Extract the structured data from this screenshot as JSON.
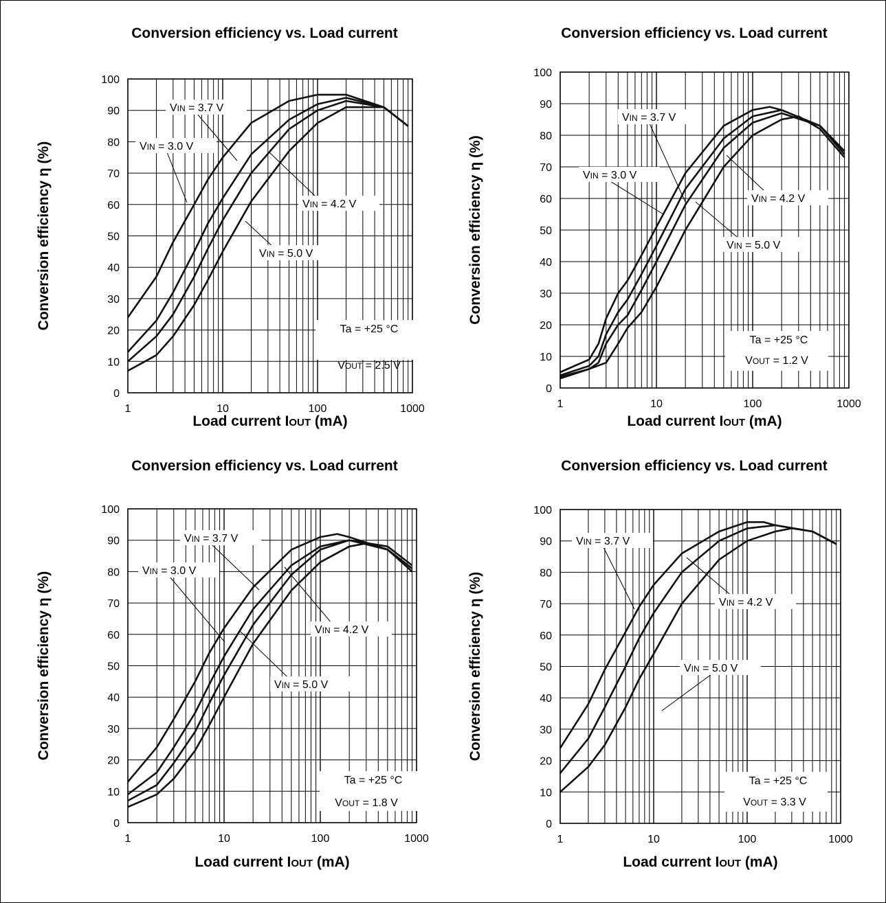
{
  "chart_data": [
    {
      "type": "line",
      "title": "Conversion efficiency vs. Load current",
      "xlabel": "Load current IOUT (mA)",
      "ylabel": "Conversion efficiency η (%)",
      "x_scale": "log",
      "xlim": [
        1,
        1000
      ],
      "ylim": [
        0,
        100
      ],
      "x_ticks": [
        "1",
        "10",
        "100",
        "1000"
      ],
      "y_ticks": [
        "0",
        "10",
        "20",
        "30",
        "40",
        "50",
        "60",
        "70",
        "80",
        "90",
        "100"
      ],
      "grid": true,
      "conditions": [
        "Ta = +25 °C",
        "VOUT = 2.5 V"
      ],
      "series": [
        {
          "name": "VIN = 3.0 V",
          "x": [
            1,
            2,
            3,
            5,
            7,
            10,
            20,
            50,
            100,
            200,
            500,
            900
          ],
          "y": [
            24,
            37,
            48,
            60,
            68,
            75,
            86,
            93,
            95,
            95,
            91,
            85
          ]
        },
        {
          "name": "VIN = 3.7 V",
          "x": [
            1,
            2,
            3,
            5,
            7,
            10,
            20,
            50,
            100,
            200,
            500,
            900
          ],
          "y": [
            13,
            23,
            32,
            45,
            54,
            62,
            76,
            87,
            92,
            94,
            91,
            85
          ]
        },
        {
          "name": "VIN = 4.2 V",
          "x": [
            1,
            2,
            3,
            5,
            7,
            10,
            20,
            50,
            100,
            200,
            500,
            900
          ],
          "y": [
            10,
            18,
            25,
            37,
            46,
            55,
            70,
            84,
            90,
            93,
            91,
            85
          ]
        },
        {
          "name": "VIN = 5.0 V",
          "x": [
            1,
            2,
            3,
            5,
            7,
            10,
            20,
            50,
            100,
            200,
            500,
            900
          ],
          "y": [
            7,
            12,
            18,
            28,
            36,
            45,
            61,
            77,
            86,
            91,
            91,
            85
          ]
        }
      ],
      "annotations": [
        "VIN = 3.7 V",
        "VIN = 3.0 V",
        "VIN = 4.2 V",
        "VIN = 5.0 V"
      ]
    },
    {
      "type": "line",
      "title": "Conversion efficiency vs. Load current",
      "xlabel": "Load current IOUT (mA)",
      "ylabel": "Conversion efficiency η (%)",
      "x_scale": "log",
      "xlim": [
        1,
        1000
      ],
      "ylim": [
        0,
        100
      ],
      "x_ticks": [
        "1",
        "10",
        "100",
        "1000"
      ],
      "y_ticks": [
        "0",
        "10",
        "20",
        "30",
        "40",
        "50",
        "60",
        "70",
        "80",
        "90",
        "100"
      ],
      "grid": true,
      "conditions": [
        "Ta = +25 °C",
        "VOUT = 1.2 V"
      ],
      "series": [
        {
          "name": "VIN = 3.0 V",
          "x": [
            1,
            2,
            2.5,
            3,
            4,
            5,
            7,
            10,
            20,
            50,
            100,
            150,
            200,
            500,
            900
          ],
          "y": [
            5,
            9,
            14,
            22,
            30,
            34,
            42,
            51,
            68,
            83,
            88,
            89,
            88,
            83,
            75
          ]
        },
        {
          "name": "VIN = 3.7 V",
          "x": [
            1,
            2,
            2.5,
            3,
            4,
            5,
            7,
            10,
            20,
            50,
            100,
            200,
            500,
            900
          ],
          "y": [
            4,
            7,
            10,
            17,
            24,
            28,
            36,
            45,
            63,
            79,
            86,
            88,
            83,
            75
          ]
        },
        {
          "name": "VIN = 4.2 V",
          "x": [
            1,
            2,
            2.5,
            3,
            4,
            5,
            7,
            10,
            20,
            50,
            100,
            200,
            500,
            900
          ],
          "y": [
            3.5,
            6,
            8,
            14,
            20,
            23,
            31,
            40,
            58,
            76,
            84,
            87,
            83,
            74
          ]
        },
        {
          "name": "VIN = 5.0 V",
          "x": [
            1,
            2,
            3,
            4,
            5,
            7,
            10,
            20,
            50,
            100,
            200,
            300,
            500,
            900
          ],
          "y": [
            3,
            6,
            8,
            14,
            19,
            24,
            32,
            50,
            70,
            80,
            85,
            86,
            82,
            73
          ]
        }
      ],
      "annotations": [
        "VIN = 3.7 V",
        "VIN = 3.0 V",
        "VIN = 4.2 V",
        "VIN = 5.0 V"
      ]
    },
    {
      "type": "line",
      "title": "Conversion efficiency vs. Load current",
      "xlabel": "Load current IOUT (mA)",
      "ylabel": "Conversion efficiency η (%)",
      "x_scale": "log",
      "xlim": [
        1,
        1000
      ],
      "ylim": [
        0,
        100
      ],
      "x_ticks": [
        "1",
        "10",
        "100",
        "1000"
      ],
      "y_ticks": [
        "0",
        "10",
        "20",
        "30",
        "40",
        "50",
        "60",
        "70",
        "80",
        "90",
        "100"
      ],
      "grid": true,
      "conditions": [
        "Ta = +25 °C",
        "VOUT = 1.8 V"
      ],
      "series": [
        {
          "name": "VIN = 3.0 V",
          "x": [
            1,
            2,
            3,
            5,
            7,
            10,
            20,
            50,
            100,
            150,
            200,
            500,
            900
          ],
          "y": [
            13,
            24,
            33,
            45,
            54,
            62,
            75,
            87,
            91,
            92,
            91,
            87,
            80
          ]
        },
        {
          "name": "VIN = 3.7 V",
          "x": [
            1,
            2,
            3,
            5,
            7,
            10,
            20,
            50,
            100,
            200,
            500,
            900
          ],
          "y": [
            9,
            16,
            24,
            35,
            44,
            53,
            68,
            82,
            88,
            90,
            87,
            81
          ]
        },
        {
          "name": "VIN = 4.2 V",
          "x": [
            1,
            2,
            3,
            5,
            7,
            10,
            20,
            50,
            100,
            200,
            500,
            900
          ],
          "y": [
            7,
            12,
            19,
            29,
            38,
            47,
            63,
            79,
            87,
            90,
            88,
            82
          ]
        },
        {
          "name": "VIN = 5.0 V",
          "x": [
            1,
            2,
            3,
            5,
            7,
            10,
            20,
            50,
            100,
            200,
            300,
            500,
            900
          ],
          "y": [
            5,
            9,
            14,
            23,
            31,
            40,
            57,
            74,
            83,
            88,
            89,
            87,
            81
          ]
        }
      ],
      "annotations": [
        "VIN = 3.7 V",
        "VIN = 3.0 V",
        "VIN = 4.2 V",
        "VIN = 5.0 V"
      ]
    },
    {
      "type": "line",
      "title": "Conversion efficiency vs. Load current",
      "xlabel": "Load current IOUT (mA)",
      "ylabel": "Conversion efficiency η (%)",
      "x_scale": "log",
      "xlim": [
        1,
        1000
      ],
      "ylim": [
        0,
        100
      ],
      "x_ticks": [
        "1",
        "10",
        "100",
        "1000"
      ],
      "y_ticks": [
        "0",
        "10",
        "20",
        "30",
        "40",
        "50",
        "60",
        "70",
        "80",
        "90",
        "100"
      ],
      "grid": true,
      "conditions": [
        "Ta = +25 °C",
        "VOUT = 3.3 V"
      ],
      "series": [
        {
          "name": "VIN = 3.7 V",
          "x": [
            1,
            2,
            3,
            5,
            7,
            10,
            20,
            50,
            100,
            150,
            200,
            500,
            900
          ],
          "y": [
            24,
            38,
            49,
            61,
            69,
            76,
            86,
            93,
            96,
            96,
            95,
            93,
            89
          ]
        },
        {
          "name": "VIN = 4.2 V",
          "x": [
            1,
            2,
            3,
            5,
            7,
            10,
            20,
            50,
            100,
            200,
            500,
            900
          ],
          "y": [
            16,
            27,
            37,
            50,
            59,
            67,
            80,
            90,
            94,
            95,
            93,
            89
          ]
        },
        {
          "name": "VIN = 5.0 V",
          "x": [
            1,
            2,
            3,
            5,
            7,
            10,
            20,
            50,
            100,
            200,
            300,
            500,
            900
          ],
          "y": [
            10,
            18,
            25,
            37,
            46,
            54,
            70,
            84,
            90,
            93,
            94,
            93,
            89
          ]
        }
      ],
      "annotations": [
        "VIN = 3.7 V",
        "VIN = 4.2 V",
        "VIN = 5.0 V"
      ]
    }
  ]
}
